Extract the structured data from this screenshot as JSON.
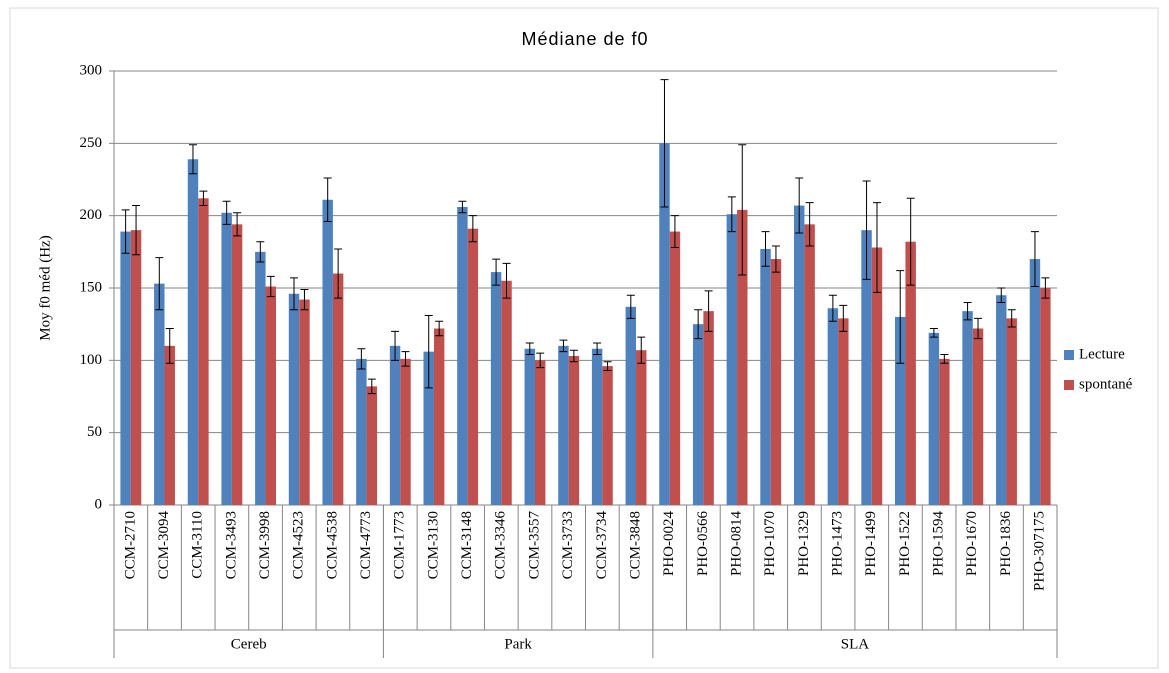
{
  "chart_data": {
    "type": "bar",
    "title": "Médiane de f0",
    "y_label": "Moy f0 méd (Hz)",
    "groups": [
      {
        "name": "Cereb",
        "categories": [
          "CCM-2710",
          "CCM-3094",
          "CCM-3110",
          "CCM-3493",
          "CCM-3998",
          "CCM-4523",
          "CCM-4538",
          "CCM-4773"
        ]
      },
      {
        "name": "Park",
        "categories": [
          "CCM-1773",
          "CCM-3130",
          "CCM-3148",
          "CCM-3346",
          "CCM-3557",
          "CCM-3733",
          "CCM-3734",
          "CCM-3848"
        ]
      },
      {
        "name": "SLA",
        "categories": [
          "PHO-0024",
          "PHO-0566",
          "PHO-0814",
          "PHO-1070",
          "PHO-1329",
          "PHO-1473",
          "PHO-1499",
          "PHO-1522",
          "PHO-1594",
          "PHO-1670",
          "PHO-1836",
          "PHO-307175"
        ]
      }
    ],
    "series": [
      {
        "name": "Lecture",
        "color": "#4f81bd",
        "values": [
          189,
          153,
          239,
          202,
          175,
          146,
          211,
          101,
          110,
          106,
          206,
          161,
          108,
          110,
          108,
          137,
          250,
          125,
          201,
          177,
          207,
          136,
          190,
          130,
          119,
          134,
          145,
          170
        ],
        "errors": [
          15,
          18,
          10,
          8,
          7,
          11,
          15,
          7,
          10,
          25,
          4,
          9,
          4,
          4,
          4,
          8,
          44,
          10,
          12,
          12,
          19,
          9,
          34,
          32,
          3,
          6,
          5,
          19
        ]
      },
      {
        "name": "spontané",
        "color": "#c0504d",
        "values": [
          190,
          110,
          212,
          194,
          151,
          142,
          160,
          82,
          101,
          122,
          191,
          155,
          100,
          103,
          96,
          107,
          189,
          134,
          204,
          170,
          194,
          129,
          178,
          182,
          101,
          122,
          129,
          150
        ],
        "errors": [
          17,
          12,
          5,
          8,
          7,
          7,
          17,
          5,
          5,
          5,
          9,
          12,
          5,
          4,
          3,
          9,
          11,
          14,
          45,
          9,
          15,
          9,
          31,
          30,
          3,
          7,
          6,
          7
        ]
      }
    ],
    "ylim": [
      0,
      300
    ],
    "yticks": [
      0,
      50,
      100,
      150,
      200,
      250,
      300
    ],
    "grid": true,
    "legend": "right"
  }
}
